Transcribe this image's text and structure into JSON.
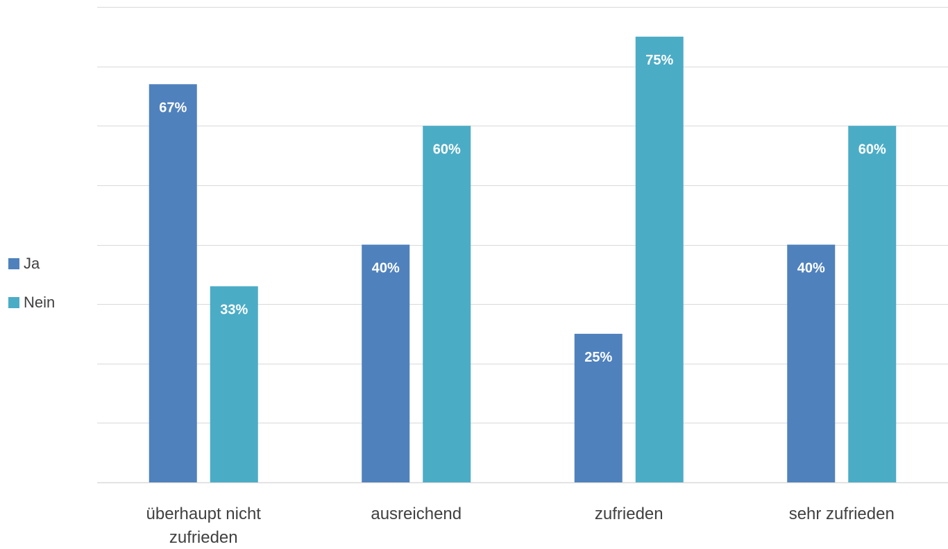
{
  "chart_data": {
    "type": "bar",
    "categories": [
      "überhaupt nicht zufrieden",
      "ausreichend",
      "zufrieden",
      "sehr zufrieden"
    ],
    "category_lines": [
      [
        "überhaupt nicht",
        "zufrieden"
      ],
      [
        "ausreichend"
      ],
      [
        "zufrieden"
      ],
      [
        "sehr zufrieden"
      ]
    ],
    "series": [
      {
        "name": "Ja",
        "values": [
          67,
          40,
          25,
          40
        ],
        "labels": [
          "67%",
          "40%",
          "25%",
          "40%"
        ],
        "color": "#4f81bd"
      },
      {
        "name": "Nein",
        "values": [
          33,
          60,
          75,
          60
        ],
        "labels": [
          "33%",
          "60%",
          "75%",
          "60%"
        ],
        "color": "#4bacc6"
      }
    ],
    "ylim": [
      0,
      80
    ],
    "gridlines": true,
    "y_tick_labels_shown": false,
    "legend_position": "left"
  }
}
